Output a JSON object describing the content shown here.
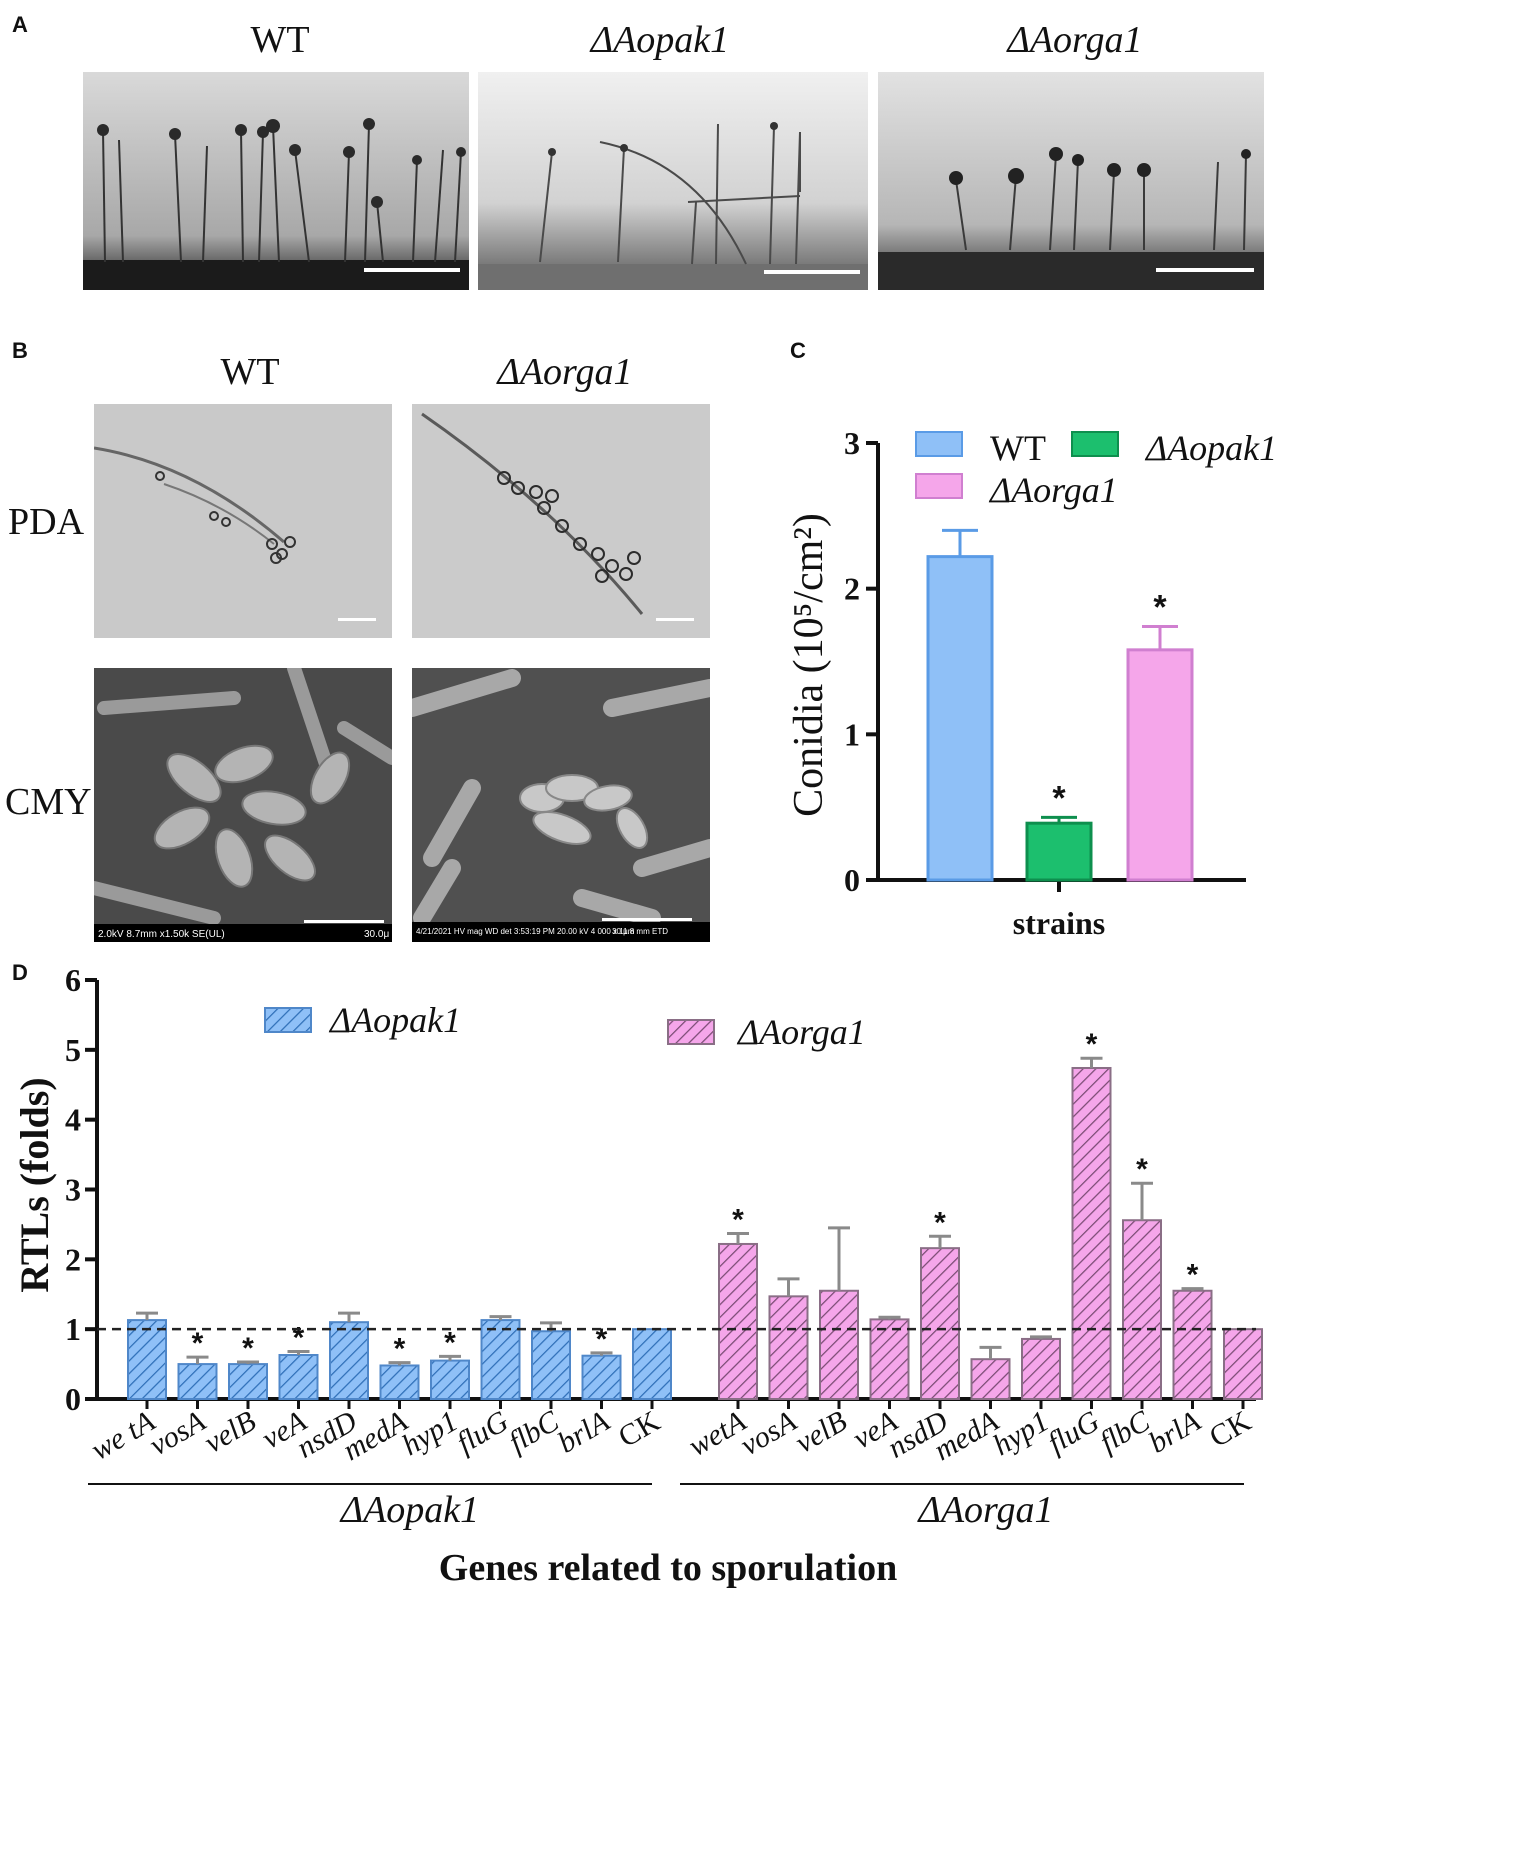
{
  "panel_labels": {
    "a": "A",
    "b": "B",
    "c": "C",
    "d": "D"
  },
  "panel_a": {
    "titles": [
      "WT",
      "ΔAopak1",
      "ΔAorga1"
    ]
  },
  "panel_b": {
    "col_titles": [
      "WT",
      "ΔAorga1"
    ],
    "row_labels": [
      "PDA",
      "CMY"
    ],
    "sem_info_left": "2.0kV 8.7mm x1.50k SE(UL)",
    "sem_scale_left": "30.0μ",
    "sem_info_right": "4/21/2021  HV  mag  WD  det\n3:53:19 PM 20.00 kV 4 000 x 11.8 mm ETD",
    "sem_scale_right": "30 μm"
  },
  "chart_data": [
    {
      "id": "C",
      "type": "bar",
      "categories": [
        "WT",
        "ΔAopak1",
        "ΔAorga1"
      ],
      "values": [
        2.22,
        0.39,
        1.58
      ],
      "errors": [
        0.18,
        0.04,
        0.16
      ],
      "significance": [
        "",
        "*",
        "*"
      ],
      "colors": [
        "#8fc0f7",
        "#1cbf6e",
        "#f5a6ea"
      ],
      "edge_colors": [
        "#5a9be6",
        "#0e8f4e",
        "#d07fd0"
      ],
      "legend": [
        "WT",
        "ΔAopak1",
        "ΔAorga1"
      ],
      "legend_placement": "top",
      "xlabel": "strains",
      "ylabel": "Conidia (10⁵/cm²)",
      "ylim": [
        0,
        3
      ],
      "yticks": [
        "0",
        "1",
        "2",
        "3"
      ]
    },
    {
      "id": "D",
      "type": "bar",
      "categories": [
        "we tA",
        "vosA",
        "velB",
        "veA",
        "nsdD",
        "medA",
        "hyp1",
        "fluG",
        "flbC",
        "brlA",
        "CK"
      ],
      "series": [
        {
          "name": "ΔAopak1",
          "categories": [
            "we tA",
            "vosA",
            "velB",
            "veA",
            "nsdD",
            "medA",
            "hyp1",
            "fluG",
            "flbC",
            "brlA",
            "CK"
          ],
          "values": [
            1.13,
            0.5,
            0.5,
            0.63,
            1.1,
            0.48,
            0.55,
            1.13,
            0.97,
            0.62,
            1.0
          ],
          "errors": [
            0.1,
            0.1,
            0.03,
            0.05,
            0.13,
            0.04,
            0.06,
            0.05,
            0.12,
            0.04,
            0
          ],
          "significance": [
            "",
            "*",
            "*",
            "*",
            "",
            "*",
            "*",
            "",
            "",
            "*",
            ""
          ],
          "color": "#8fc0f7",
          "edge": "#4f87c9"
        },
        {
          "name": "ΔAorga1",
          "categories": [
            "wetA",
            "vosA",
            "velB",
            "veA",
            "nsdD",
            "medA",
            "hyp1",
            "fluG",
            "flbC",
            "brlA",
            "CK"
          ],
          "values": [
            2.22,
            1.47,
            1.55,
            1.14,
            2.16,
            0.57,
            0.86,
            4.74,
            2.56,
            1.55,
            1.0
          ],
          "errors": [
            0.15,
            0.25,
            0.9,
            0.03,
            0.17,
            0.17,
            0.03,
            0.14,
            0.53,
            0.03,
            0
          ],
          "significance": [
            "*",
            "",
            "",
            "",
            "*",
            "",
            "",
            "*",
            "*",
            "*",
            ""
          ],
          "color": "#f5a6ea",
          "edge": "#8a6e86"
        }
      ],
      "group_labels": [
        "ΔAopak1",
        "ΔAorga1"
      ],
      "xlabel": "Genes related to sporulation",
      "ylabel": "RTLs (folds)",
      "ylim": [
        0,
        6
      ],
      "yticks": [
        "0",
        "1",
        "2",
        "3",
        "4",
        "5",
        "6"
      ],
      "reference_line": 1.0,
      "legend_placement": "top"
    }
  ]
}
